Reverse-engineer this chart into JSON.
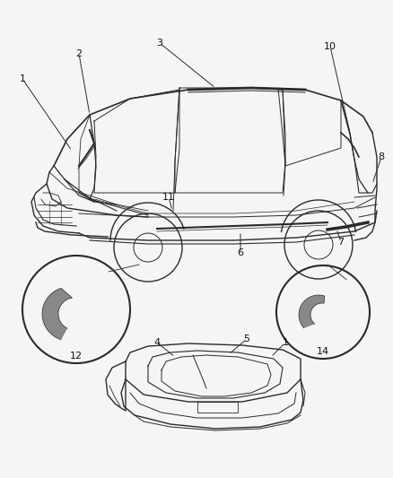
{
  "bg_color": "#f5f5f5",
  "line_color": "#2a2a2a",
  "label_color": "#111111",
  "fig_width": 4.38,
  "fig_height": 5.33,
  "dpi": 100
}
